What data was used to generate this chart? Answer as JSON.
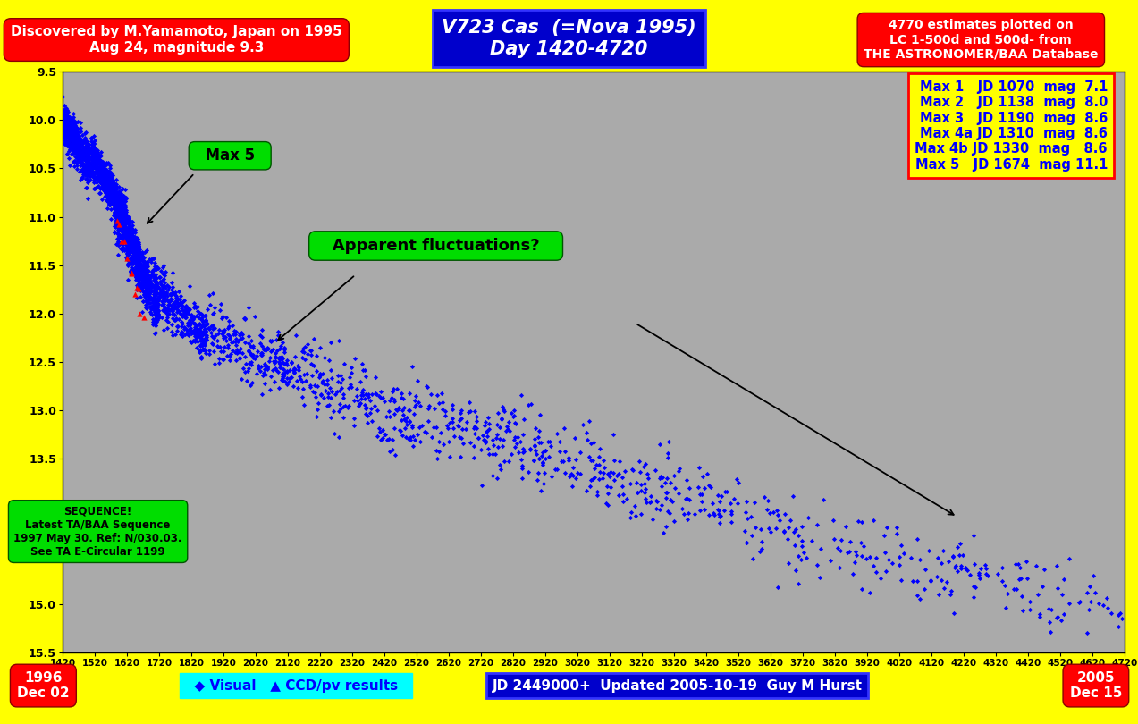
{
  "title_line1": "V723 Cas  (=Nova 1995)",
  "title_line2": "Day 1420-4720",
  "top_left_text": "Discovered by M.Yamamoto, Japan on 1995\nAug 24, magnitude 9.3",
  "top_right_text": "4770 estimates plotted on\nLC 1-500d and 500d- from\nTHE ASTRONOMER/BAA Database",
  "bottom_left_text": "1996\nDec 02",
  "bottom_right_text": "2005\nDec 15",
  "bottom_center_text": "JD 2449000+  Updated 2005-10-19  Guy M Hurst",
  "sequence_text": "SEQUENCE!\nLatest TA/BAA Sequence\n1997 May 30. Ref: N/030.03.\nSee TA E-Circular 1199",
  "max_box_lines": [
    "Max 1   JD 1070  mag  7.1",
    "Max 2   JD 1138  mag  8.0",
    "Max 3   JD 1190  mag  8.6",
    "Max 4a JD 1310  mag  8.6",
    "Max 4b JD 1330  mag   8.6",
    "Max 5   JD 1674  mag 11.1"
  ],
  "bg_color": "#ffff00",
  "plot_bg_color": "#aaaaaa",
  "xmin": 1420,
  "xmax": 4720,
  "ymin": 9.5,
  "ymax": 15.5,
  "xtick_step": 100,
  "ytick_step": 0.5
}
